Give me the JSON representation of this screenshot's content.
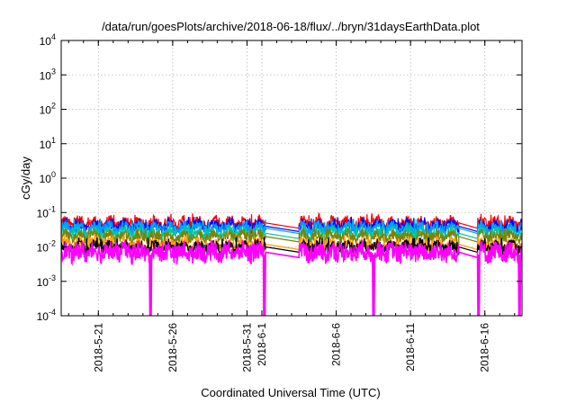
{
  "chart_data": {
    "type": "line",
    "title": "/data/run/goesPlots/archive/2018-06-18/flux/../bryn/31daysEarthData.plot",
    "xlabel": "Coordinated Universal Time (UTC)",
    "ylabel": "cGy/day",
    "yscale": "log",
    "ylim": [
      0.0001,
      10000
    ],
    "yticks": [
      {
        "base": "10",
        "exp": "-4",
        "value": 0.0001
      },
      {
        "base": "10",
        "exp": "-3",
        "value": 0.001
      },
      {
        "base": "10",
        "exp": "-2",
        "value": 0.01
      },
      {
        "base": "10",
        "exp": "-1",
        "value": 0.1
      },
      {
        "base": "10",
        "exp": "0",
        "value": 1
      },
      {
        "base": "10",
        "exp": "1",
        "value": 10
      },
      {
        "base": "10",
        "exp": "2",
        "value": 100
      },
      {
        "base": "10",
        "exp": "3",
        "value": 1000
      },
      {
        "base": "10",
        "exp": "4",
        "value": 10000
      }
    ],
    "xlim": [
      "2018-05-18T12:00",
      "2018-06-18T12:00"
    ],
    "xticks": [
      {
        "label": "2018-5-21",
        "date": "2018-05-21"
      },
      {
        "label": "2018-5-26",
        "date": "2018-05-26"
      },
      {
        "label": "2018-5-31",
        "date": "2018-05-31"
      },
      {
        "label": "2018-6-1",
        "date": "2018-06-01"
      },
      {
        "label": "2018-6-6",
        "date": "2018-06-06"
      },
      {
        "label": "2018-6-11",
        "date": "2018-06-11"
      },
      {
        "label": "2018-6-16",
        "date": "2018-06-16"
      }
    ],
    "grid": true,
    "data_segments": [
      [
        "2018-05-18T12:00",
        "2018-06-01T06:00"
      ],
      [
        "2018-06-03T12:00",
        "2018-06-14T06:00"
      ],
      [
        "2018-06-15T12:00",
        "2018-06-18T12:00"
      ]
    ],
    "series": [
      {
        "color": "#ff0000",
        "typical": 0.05,
        "peak": 0.08
      },
      {
        "color": "#0000ff",
        "typical": 0.04,
        "peak": 0.065
      },
      {
        "color": "#00a0ff",
        "typical": 0.035,
        "peak": 0.055
      },
      {
        "color": "#00c8a0",
        "typical": 0.025,
        "peak": 0.04
      },
      {
        "color": "#808000",
        "typical": 0.02,
        "peak": 0.03
      },
      {
        "color": "#ffa000",
        "typical": 0.012,
        "peak": 0.02
      },
      {
        "color": "#000000",
        "typical": 0.01,
        "peak": 0.016
      },
      {
        "color": "#ff00ff",
        "typical": 0.007,
        "peak": 0.012
      }
    ],
    "dropouts": [
      "2018-05-24T12:00",
      "2018-06-01T04:00",
      "2018-06-08T12:00",
      "2018-06-15T14:00",
      "2018-06-18T08:00"
    ]
  }
}
